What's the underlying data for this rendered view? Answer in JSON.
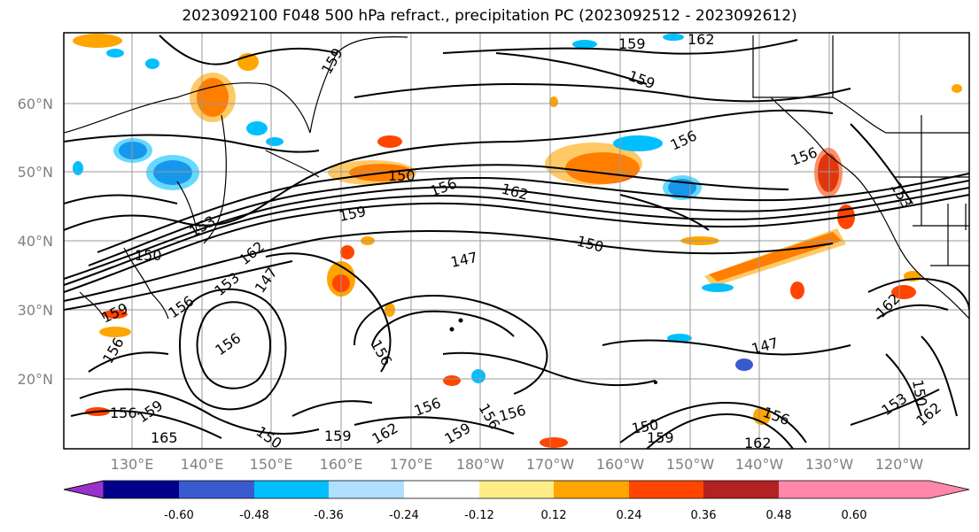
{
  "title": "2023092100 F048 500 hPa refract., precipitation PC (2023092512 - 2023092612)",
  "map": {
    "lat_ticks": [
      "60°N",
      "50°N",
      "40°N",
      "30°N",
      "20°N"
    ],
    "lon_ticks": [
      "130°E",
      "140°E",
      "150°E",
      "160°E",
      "170°E",
      "180°W",
      "170°W",
      "160°W",
      "150°W",
      "140°W",
      "130°W",
      "120°W"
    ],
    "contour_labels": [
      "159",
      "162",
      "159",
      "159",
      "156",
      "156",
      "153",
      "150",
      "156",
      "162",
      "159",
      "153",
      "150",
      "162",
      "147",
      "153",
      "159",
      "156",
      "150",
      "147",
      "156",
      "156",
      "147",
      "156",
      "156",
      "159",
      "165",
      "150",
      "159",
      "162",
      "156",
      "156",
      "159",
      "156",
      "162",
      "150",
      "150",
      "162",
      "153",
      "162",
      "156",
      "159"
    ]
  },
  "colorbar": {
    "colors": [
      "#9932cc",
      "#00008b",
      "#3a5bd0",
      "#00bfff",
      "#b0e0ff",
      "#ffffff",
      "#ffee88",
      "#ffa500",
      "#ff4500",
      "#b22222",
      "#ff88aa"
    ],
    "labels": [
      "-0.60",
      "-0.48",
      "-0.36",
      "-0.24",
      "-0.12",
      "0.12",
      "0.24",
      "0.36",
      "0.48",
      "0.60"
    ]
  },
  "colors": {
    "contour": "#000000",
    "grid": "#999999",
    "coast": "#000000"
  }
}
